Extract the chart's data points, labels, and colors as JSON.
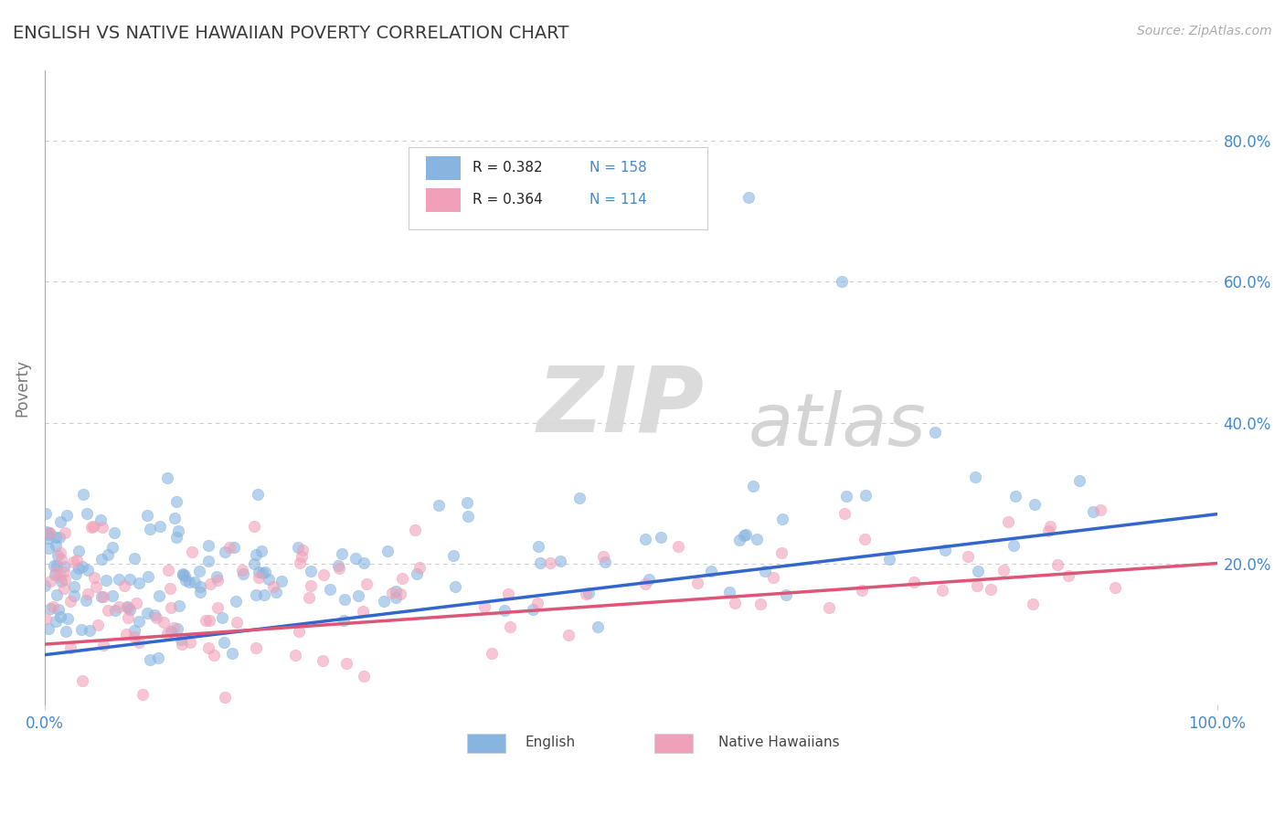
{
  "title": "ENGLISH VS NATIVE HAWAIIAN POVERTY CORRELATION CHART",
  "source": "Source: ZipAtlas.com",
  "ylabel": "Poverty",
  "title_color": "#3a3a3a",
  "title_fontsize": 14,
  "axis_label_color": "#777777",
  "background_color": "#ffffff",
  "grid_color": "#cccccc",
  "english_color": "#88b4e0",
  "hawaiian_color": "#f0a0b8",
  "trend_english_color": "#3366cc",
  "trend_hawaiian_color": "#dd5577",
  "tick_label_color": "#4488cc",
  "source_color": "#aaaaaa",
  "watermark_ZIP": "ZIP",
  "watermark_atlas": "atlas",
  "legend_R1": "R = 0.382",
  "legend_N1": "N = 158",
  "legend_R2": "R = 0.364",
  "legend_N2": "N = 114",
  "xlim": [
    0.0,
    1.0
  ],
  "ylim": [
    0.0,
    0.9
  ],
  "ytick_vals": [
    0.2,
    0.4,
    0.6,
    0.8
  ],
  "ytick_labels": [
    "20.0%",
    "40.0%",
    "60.0%",
    "80.0%"
  ],
  "xtick_vals": [
    0.0,
    1.0
  ],
  "xtick_labels": [
    "0.0%",
    "100.0%"
  ]
}
